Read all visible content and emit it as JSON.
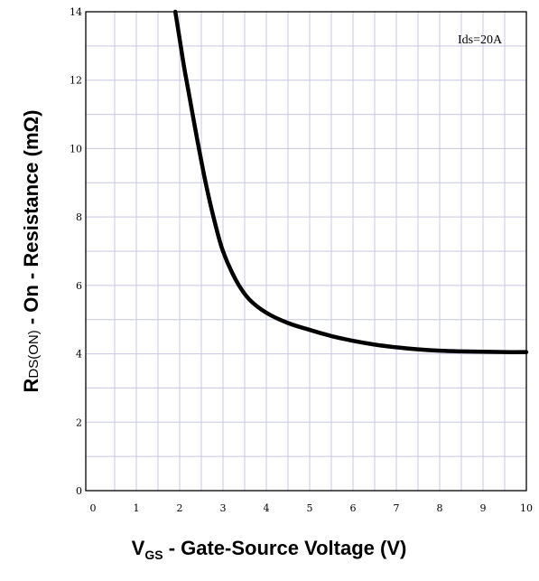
{
  "chart_data": {
    "type": "line",
    "title": "",
    "annotation": "Ids=20A",
    "xlabel": {
      "main": "V",
      "sub": "GS",
      "rest": " - Gate-Source Voltage (V)"
    },
    "ylabel": {
      "main": "R",
      "sub": "DS(ON)",
      "rest": " - On - Resistance (mΩ)"
    },
    "xlim": [
      0,
      10
    ],
    "ylim": [
      0,
      14
    ],
    "x_ticks": [
      "0",
      "1",
      "2",
      "3",
      "4",
      "5",
      "6",
      "7",
      "8",
      "9",
      "10"
    ],
    "y_ticks": [
      "0",
      "2",
      "4",
      "6",
      "8",
      "10",
      "12",
      "14"
    ],
    "grid": true,
    "series": [
      {
        "color": "#000000",
        "x": [
          1.9,
          2.0,
          2.1,
          2.2,
          2.4,
          2.6,
          2.8,
          3.0,
          3.3,
          3.6,
          4.0,
          4.5,
          5.0,
          5.5,
          6.0,
          6.5,
          7.0,
          7.5,
          8.0,
          8.5,
          9.0,
          9.5,
          10.0
        ],
        "y": [
          14.0,
          13.2,
          12.4,
          11.7,
          10.3,
          9.0,
          7.9,
          7.0,
          6.15,
          5.6,
          5.2,
          4.9,
          4.7,
          4.52,
          4.38,
          4.27,
          4.19,
          4.13,
          4.09,
          4.07,
          4.06,
          4.05,
          4.05
        ]
      }
    ]
  }
}
